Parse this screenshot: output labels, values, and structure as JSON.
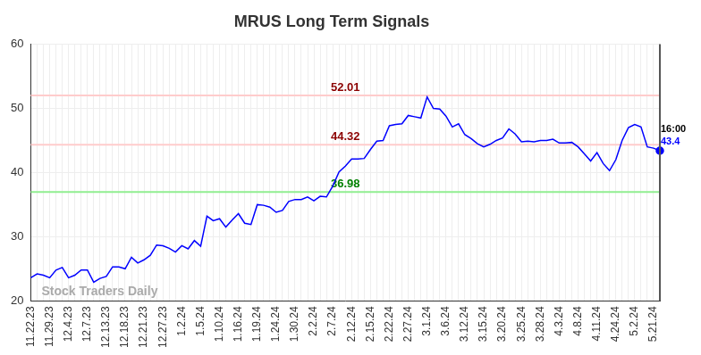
{
  "chart_data": {
    "type": "line",
    "title": "MRUS Long Term Signals",
    "categories": [
      "11.22.23",
      null,
      null,
      "11.29.23",
      null,
      null,
      "12.4.23",
      null,
      null,
      "12.7.23",
      null,
      null,
      "12.13.23",
      null,
      null,
      "12.18.23",
      null,
      null,
      "12.21.23",
      null,
      null,
      "12.27.23",
      null,
      null,
      "1.2.24",
      null,
      null,
      "1.5.24",
      null,
      null,
      "1.10.24",
      null,
      null,
      "1.16.24",
      null,
      null,
      "1.19.24",
      null,
      null,
      "1.24.24",
      null,
      null,
      "1.30.24",
      null,
      null,
      "2.2.24",
      null,
      null,
      "2.7.24",
      null,
      null,
      "2.12.24",
      null,
      null,
      "2.15.24",
      null,
      null,
      "2.22.24",
      null,
      null,
      "2.27.24",
      null,
      null,
      "3.1.24",
      null,
      null,
      "3.6.24",
      null,
      null,
      "3.12.24",
      null,
      null,
      "3.15.24",
      null,
      null,
      "3.20.24",
      null,
      null,
      "3.25.24",
      null,
      null,
      "3.28.24",
      null,
      null,
      "4.3.24",
      null,
      null,
      "4.8.24",
      null,
      null,
      "4.11.24",
      null,
      null,
      "4.24.24",
      null,
      null,
      "5.2.24",
      null,
      null,
      "5.21.24",
      null
    ],
    "values": [
      23.6,
      24.2,
      24.0,
      23.6,
      24.8,
      25.2,
      23.6,
      24.0,
      24.8,
      24.8,
      22.9,
      23.5,
      23.8,
      25.3,
      25.3,
      25.0,
      26.8,
      25.9,
      26.4,
      27.1,
      28.7,
      28.6,
      28.2,
      27.6,
      28.6,
      28.1,
      29.4,
      28.5,
      33.2,
      32.5,
      32.8,
      31.5,
      32.6,
      33.6,
      32.1,
      31.9,
      35.0,
      34.9,
      34.6,
      33.8,
      34.1,
      35.5,
      35.8,
      35.8,
      36.2,
      35.6,
      36.3,
      36.2,
      37.9,
      40.1,
      41.0,
      42.1,
      42.1,
      42.2,
      43.6,
      44.9,
      45.0,
      47.3,
      47.5,
      47.6,
      48.9,
      48.7,
      48.5,
      51.8,
      50.0,
      49.9,
      48.8,
      47.1,
      47.6,
      45.9,
      45.3,
      44.5,
      44.0,
      44.4,
      45.0,
      45.4,
      46.8,
      46.0,
      44.8,
      44.9,
      44.8,
      45.0,
      45.0,
      45.2,
      44.6,
      44.6,
      44.7,
      44.0,
      42.9,
      41.8,
      43.1,
      41.4,
      40.3,
      42.0,
      45.0,
      47.0,
      47.5,
      47.1,
      44.0,
      43.8,
      43.4
    ],
    "color": "#0000ff",
    "marker": "last",
    "ylim": [
      20,
      60
    ],
    "yticks": [
      20,
      30,
      40,
      50,
      60
    ],
    "grid": true,
    "reference_lines": [
      {
        "value": 52.01,
        "color": "#ffcccc",
        "label_color": "#8b0000"
      },
      {
        "value": 44.32,
        "color": "#ffcccc",
        "label_color": "#8b0000"
      },
      {
        "value": 36.98,
        "color": "#90ee90",
        "label_color": "#008000"
      }
    ],
    "last_time_label": "16:00",
    "watermark": "Stock Traders Daily"
  }
}
